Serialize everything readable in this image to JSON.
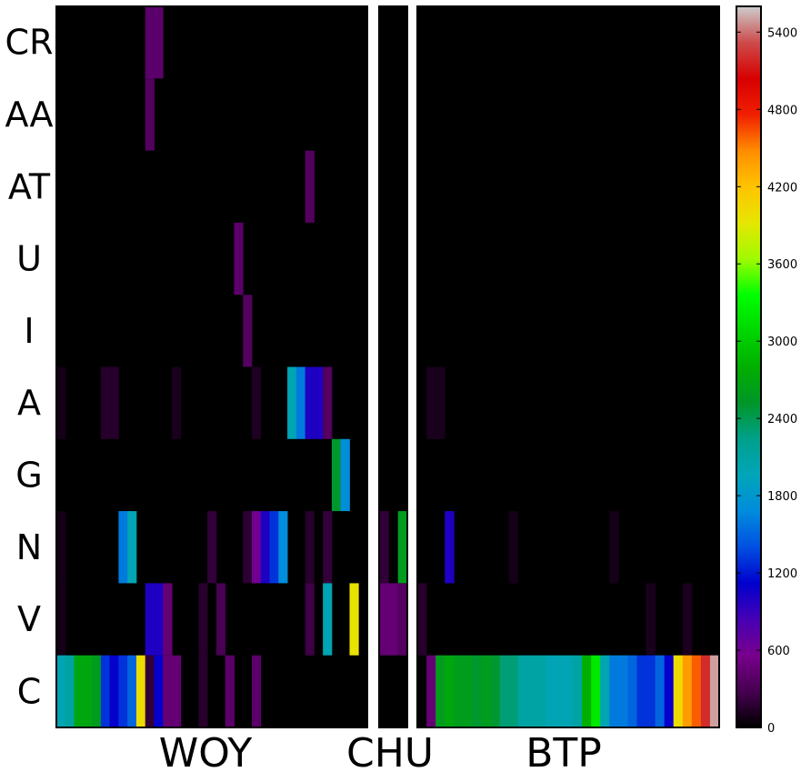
{
  "chart_data": {
    "type": "heatmap",
    "title": "",
    "rows": [
      "CR",
      "AA",
      "AT",
      "U",
      "I",
      "A",
      "G",
      "N",
      "V",
      "C"
    ],
    "groups": [
      {
        "label": "WOY",
        "columns": 35
      },
      {
        "label": "CHU",
        "columns": 3
      },
      {
        "label": "BTP",
        "columns": 33
      }
    ],
    "colorbar": {
      "min": 0,
      "max": 5600,
      "ticks": [
        0,
        600,
        1200,
        1800,
        2400,
        3000,
        3600,
        4200,
        4800,
        5400
      ],
      "colormap": "nipy_spectral"
    },
    "cells": {
      "WOY": [
        {
          "row": "CR",
          "col": 10,
          "value": 400
        },
        {
          "row": "CR",
          "col": 11,
          "value": 400
        },
        {
          "row": "AA",
          "col": 10,
          "value": 350
        },
        {
          "row": "AT",
          "col": 28,
          "value": 350
        },
        {
          "row": "U",
          "col": 20,
          "value": 400
        },
        {
          "row": "I",
          "col": 21,
          "value": 350
        },
        {
          "row": "A",
          "col": 0,
          "value": 80
        },
        {
          "row": "A",
          "col": 5,
          "value": 150
        },
        {
          "row": "A",
          "col": 6,
          "value": 150
        },
        {
          "row": "A",
          "col": 13,
          "value": 100
        },
        {
          "row": "A",
          "col": 22,
          "value": 120
        },
        {
          "row": "A",
          "col": 26,
          "value": 2000
        },
        {
          "row": "A",
          "col": 27,
          "value": 1600
        },
        {
          "row": "A",
          "col": 28,
          "value": 1000
        },
        {
          "row": "A",
          "col": 29,
          "value": 1000
        },
        {
          "row": "A",
          "col": 30,
          "value": 350
        },
        {
          "row": "G",
          "col": 31,
          "value": 2500
        },
        {
          "row": "G",
          "col": 32,
          "value": 1700
        },
        {
          "row": "N",
          "col": 0,
          "value": 80
        },
        {
          "row": "N",
          "col": 7,
          "value": 1600
        },
        {
          "row": "N",
          "col": 8,
          "value": 2000
        },
        {
          "row": "N",
          "col": 17,
          "value": 200
        },
        {
          "row": "N",
          "col": 21,
          "value": 180
        },
        {
          "row": "N",
          "col": 22,
          "value": 600
        },
        {
          "row": "N",
          "col": 23,
          "value": 1000
        },
        {
          "row": "N",
          "col": 24,
          "value": 1300
        },
        {
          "row": "N",
          "col": 25,
          "value": 1700
        },
        {
          "row": "N",
          "col": 28,
          "value": 150
        },
        {
          "row": "N",
          "col": 30,
          "value": 200
        },
        {
          "row": "V",
          "col": 0,
          "value": 80
        },
        {
          "row": "V",
          "col": 10,
          "value": 1000
        },
        {
          "row": "V",
          "col": 11,
          "value": 1000
        },
        {
          "row": "V",
          "col": 12,
          "value": 450
        },
        {
          "row": "V",
          "col": 16,
          "value": 150
        },
        {
          "row": "V",
          "col": 18,
          "value": 300
        },
        {
          "row": "V",
          "col": 28,
          "value": 250
        },
        {
          "row": "V",
          "col": 30,
          "value": 2000
        },
        {
          "row": "V",
          "col": 33,
          "value": 3950
        },
        {
          "row": "C",
          "col": 0,
          "value": 2000
        },
        {
          "row": "C",
          "col": 1,
          "value": 2100
        },
        {
          "row": "C",
          "col": 2,
          "value": 2700
        },
        {
          "row": "C",
          "col": 3,
          "value": 2700
        },
        {
          "row": "C",
          "col": 4,
          "value": 2600
        },
        {
          "row": "C",
          "col": 5,
          "value": 1300
        },
        {
          "row": "C",
          "col": 6,
          "value": 1100
        },
        {
          "row": "C",
          "col": 7,
          "value": 1300
        },
        {
          "row": "C",
          "col": 8,
          "value": 1500
        },
        {
          "row": "C",
          "col": 9,
          "value": 4000
        },
        {
          "row": "C",
          "col": 10,
          "value": 200
        },
        {
          "row": "C",
          "col": 11,
          "value": 1100
        },
        {
          "row": "C",
          "col": 12,
          "value": 450
        },
        {
          "row": "C",
          "col": 13,
          "value": 450
        },
        {
          "row": "C",
          "col": 16,
          "value": 150
        },
        {
          "row": "C",
          "col": 19,
          "value": 400
        },
        {
          "row": "C",
          "col": 22,
          "value": 400
        }
      ],
      "CHU": [
        {
          "row": "N",
          "col": 0,
          "value": 200
        },
        {
          "row": "N",
          "col": 2,
          "value": 2600
        },
        {
          "row": "V",
          "col": 0,
          "value": 450
        },
        {
          "row": "V",
          "col": 1,
          "value": 450
        },
        {
          "row": "V",
          "col": 2,
          "value": 350
        }
      ],
      "BTP": [
        {
          "row": "A",
          "col": 1,
          "value": 100
        },
        {
          "row": "A",
          "col": 2,
          "value": 100
        },
        {
          "row": "N",
          "col": 3,
          "value": 1000
        },
        {
          "row": "N",
          "col": 10,
          "value": 80
        },
        {
          "row": "N",
          "col": 21,
          "value": 80
        },
        {
          "row": "V",
          "col": 0,
          "value": 150
        },
        {
          "row": "V",
          "col": 25,
          "value": 100
        },
        {
          "row": "V",
          "col": 29,
          "value": 100
        },
        {
          "row": "C",
          "col": 1,
          "value": 450
        },
        {
          "row": "C",
          "col": 2,
          "value": 2600
        },
        {
          "row": "C",
          "col": 3,
          "value": 2700
        },
        {
          "row": "C",
          "col": 4,
          "value": 2600
        },
        {
          "row": "C",
          "col": 5,
          "value": 2600
        },
        {
          "row": "C",
          "col": 6,
          "value": 2500
        },
        {
          "row": "C",
          "col": 7,
          "value": 2600
        },
        {
          "row": "C",
          "col": 8,
          "value": 2500
        },
        {
          "row": "C",
          "col": 9,
          "value": 2300
        },
        {
          "row": "C",
          "col": 10,
          "value": 2300
        },
        {
          "row": "C",
          "col": 11,
          "value": 2100
        },
        {
          "row": "C",
          "col": 12,
          "value": 2100
        },
        {
          "row": "C",
          "col": 13,
          "value": 2100
        },
        {
          "row": "C",
          "col": 14,
          "value": 2000
        },
        {
          "row": "C",
          "col": 15,
          "value": 2000
        },
        {
          "row": "C",
          "col": 16,
          "value": 2000
        },
        {
          "row": "C",
          "col": 17,
          "value": 2100
        },
        {
          "row": "C",
          "col": 18,
          "value": 2800
        },
        {
          "row": "C",
          "col": 19,
          "value": 3200
        },
        {
          "row": "C",
          "col": 20,
          "value": 2000
        },
        {
          "row": "C",
          "col": 21,
          "value": 1600
        },
        {
          "row": "C",
          "col": 22,
          "value": 1600
        },
        {
          "row": "C",
          "col": 23,
          "value": 1500
        },
        {
          "row": "C",
          "col": 24,
          "value": 1300
        },
        {
          "row": "C",
          "col": 25,
          "value": 1300
        },
        {
          "row": "C",
          "col": 26,
          "value": 1500
        },
        {
          "row": "C",
          "col": 27,
          "value": 1100
        },
        {
          "row": "C",
          "col": 28,
          "value": 4000
        },
        {
          "row": "C",
          "col": 29,
          "value": 4400
        },
        {
          "row": "C",
          "col": 30,
          "value": 4600
        },
        {
          "row": "C",
          "col": 31,
          "value": 5200
        },
        {
          "row": "C",
          "col": 32,
          "value": 5500
        }
      ]
    }
  }
}
